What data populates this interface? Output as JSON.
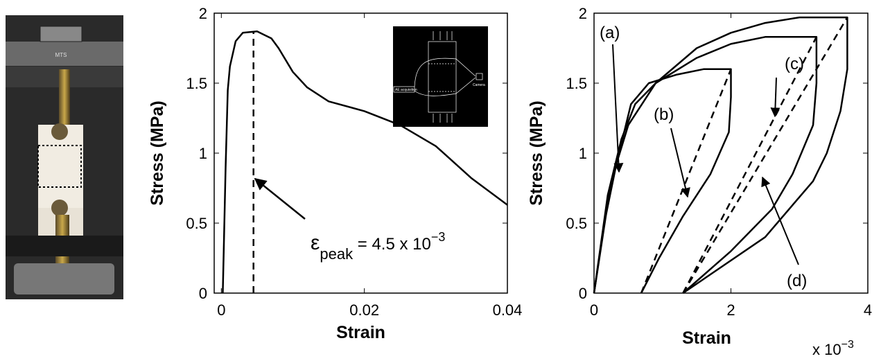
{
  "photo_label": "MTS",
  "chart_data": [
    {
      "type": "line",
      "xlabel": "Strain",
      "ylabel": "Stress (MPa)",
      "xlim": [
        -0.001,
        0.04
      ],
      "ylim": [
        0,
        2
      ],
      "xticks": [
        0,
        0.02,
        0.04
      ],
      "yticks": [
        0,
        0.5,
        1,
        1.5,
        2
      ],
      "series": [
        {
          "color": "#000000",
          "dashed": false,
          "x": [
            0.0002,
            0.0006,
            0.0009,
            0.0012,
            0.002,
            0.003,
            0.005,
            0.007,
            0.008,
            0.01,
            0.012,
            0.015,
            0.02,
            0.025,
            0.03,
            0.035,
            0.04
          ],
          "values": [
            0,
            0.9,
            1.45,
            1.62,
            1.8,
            1.86,
            1.87,
            1.82,
            1.75,
            1.58,
            1.47,
            1.37,
            1.3,
            1.2,
            1.05,
            0.82,
            0.63
          ]
        },
        {
          "color": "#000000",
          "dashed": true,
          "x": [
            0.0045,
            0.0045
          ],
          "values": [
            0,
            1.87
          ]
        }
      ],
      "annotation": {
        "symbol": "ε",
        "subscript": "peak",
        "text": " = 4.5 x 10",
        "superscript": "−3"
      },
      "inset_labels": [
        "AE acquisition",
        "Camera"
      ]
    },
    {
      "type": "line",
      "xlabel": "Strain",
      "ylabel": "Stress (MPa)",
      "x_multiplier": {
        "base": "x 10",
        "exponent": "−3"
      },
      "xlim": [
        0,
        4
      ],
      "ylim": [
        0,
        2
      ],
      "xticks": [
        0,
        2,
        4
      ],
      "yticks": [
        0,
        0.5,
        1,
        1.5,
        2
      ],
      "series": [
        {
          "color": "#000000",
          "dashed": false,
          "x": [
            0,
            0.15,
            0.33,
            0.54,
            0.8,
            1.2,
            1.6,
            2.0,
            2.0,
            1.97,
            1.7,
            1.3,
            0.95,
            0.69
          ],
          "values": [
            0,
            0.5,
            0.93,
            1.35,
            1.5,
            1.56,
            1.6,
            1.6,
            1.4,
            1.15,
            0.85,
            0.55,
            0.25,
            0
          ]
        },
        {
          "color": "#000000",
          "dashed": false,
          "x": [
            0,
            0.2,
            0.4,
            0.6,
            0.9,
            1.5,
            2.0,
            2.5,
            3.25,
            3.25,
            3.2,
            2.9,
            2.6,
            2.0,
            1.3
          ],
          "values": [
            0,
            0.7,
            1.1,
            1.35,
            1.5,
            1.68,
            1.78,
            1.83,
            1.83,
            1.5,
            1.2,
            0.85,
            0.6,
            0.3,
            0
          ]
        },
        {
          "color": "#000000",
          "dashed": false,
          "x": [
            0,
            0.25,
            0.5,
            0.9,
            1.5,
            2.0,
            2.5,
            3.0,
            3.7,
            3.7,
            3.6,
            3.4,
            3.2,
            2.5,
            1.3
          ],
          "values": [
            0,
            0.8,
            1.2,
            1.5,
            1.75,
            1.86,
            1.93,
            1.97,
            1.97,
            1.6,
            1.3,
            1.0,
            0.8,
            0.4,
            0
          ]
        },
        {
          "color": "#000000",
          "dashed": true,
          "x": [
            0.69,
            2.0
          ],
          "values": [
            0,
            1.6
          ]
        },
        {
          "color": "#000000",
          "dashed": true,
          "x": [
            1.3,
            3.25
          ],
          "values": [
            0,
            1.83
          ]
        },
        {
          "color": "#000000",
          "dashed": true,
          "x": [
            1.3,
            3.7
          ],
          "values": [
            0,
            1.97
          ]
        }
      ],
      "annotations": [
        "(a)",
        "(b)",
        "(c)",
        "(d)"
      ]
    }
  ]
}
